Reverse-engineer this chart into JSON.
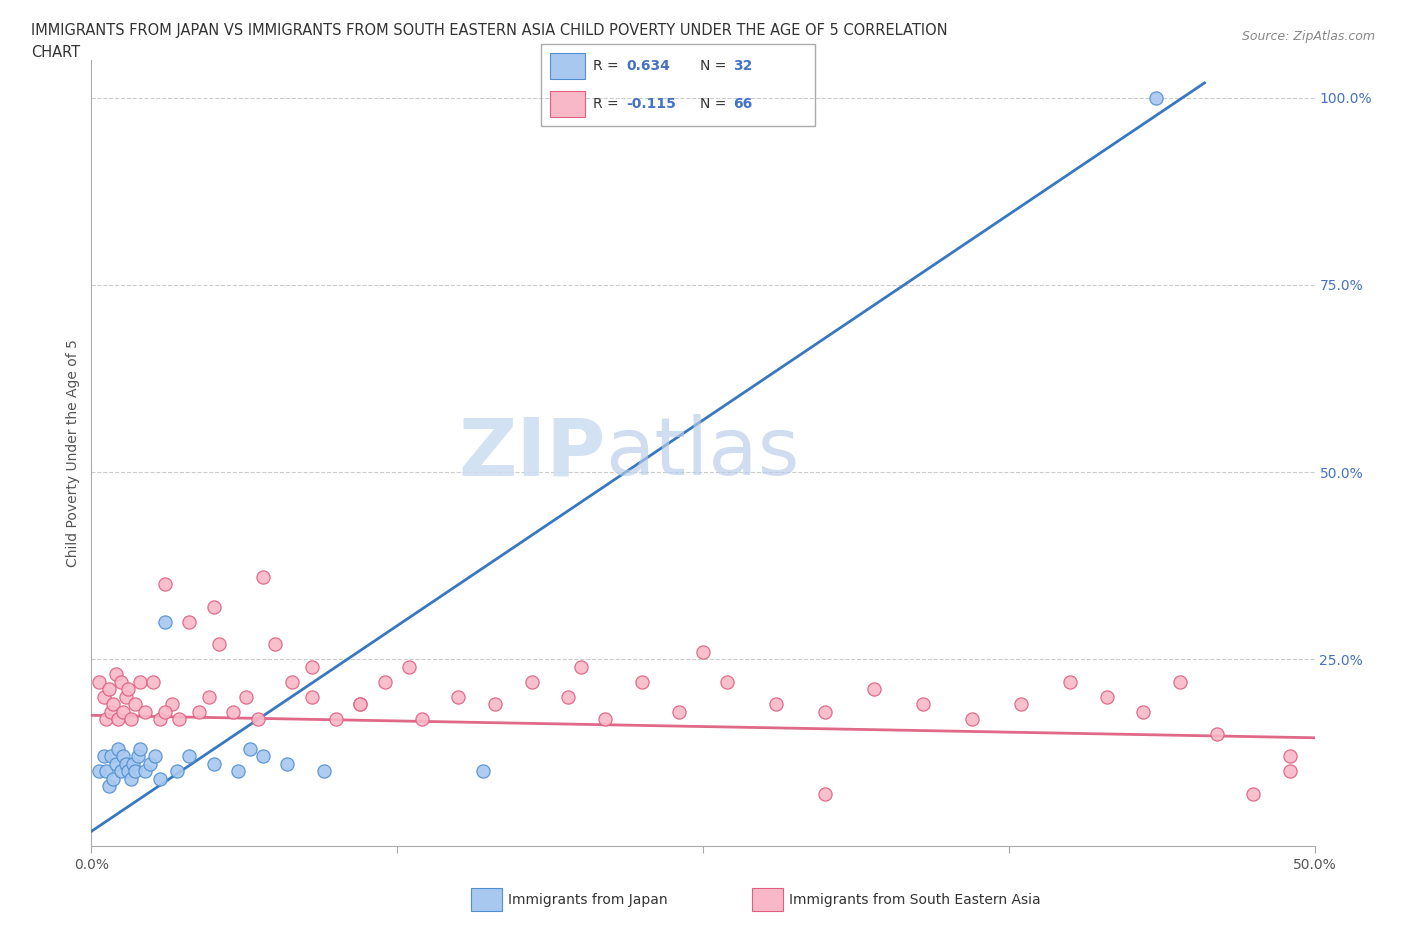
{
  "title_line1": "IMMIGRANTS FROM JAPAN VS IMMIGRANTS FROM SOUTH EASTERN ASIA CHILD POVERTY UNDER THE AGE OF 5 CORRELATION",
  "title_line2": "CHART",
  "source": "Source: ZipAtlas.com",
  "ylabel": "Child Poverty Under the Age of 5",
  "R_japan": 0.634,
  "N_japan": 32,
  "R_sea": -0.115,
  "N_sea": 66,
  "color_japan_fill": "#A8C8F0",
  "color_japan_edge": "#5090D0",
  "color_sea_fill": "#F8B8C8",
  "color_sea_edge": "#E06080",
  "color_japan_line": "#3878C0",
  "color_sea_line": "#E06888",
  "color_rn_text": "#4472C4",
  "xmin": 0.0,
  "xmax": 0.5,
  "ymin": 0.0,
  "ymax": 1.05,
  "japan_line_x0": 0.0,
  "japan_line_y0": 0.02,
  "japan_line_x1": 0.455,
  "japan_line_y1": 1.02,
  "sea_line_x0": 0.0,
  "sea_line_y0": 0.175,
  "sea_line_x1": 0.5,
  "sea_line_y1": 0.145,
  "japan_points_x": [
    0.003,
    0.005,
    0.006,
    0.007,
    0.008,
    0.009,
    0.01,
    0.011,
    0.012,
    0.013,
    0.014,
    0.015,
    0.016,
    0.017,
    0.018,
    0.019,
    0.02,
    0.022,
    0.024,
    0.026,
    0.028,
    0.03,
    0.035,
    0.04,
    0.05,
    0.06,
    0.065,
    0.07,
    0.08,
    0.095,
    0.16,
    0.435
  ],
  "japan_points_y": [
    0.1,
    0.12,
    0.1,
    0.08,
    0.12,
    0.09,
    0.11,
    0.13,
    0.1,
    0.12,
    0.11,
    0.1,
    0.09,
    0.11,
    0.1,
    0.12,
    0.13,
    0.1,
    0.11,
    0.12,
    0.09,
    0.3,
    0.1,
    0.12,
    0.11,
    0.1,
    0.13,
    0.12,
    0.11,
    0.1,
    0.1,
    1.0
  ],
  "sea_points_x": [
    0.003,
    0.005,
    0.006,
    0.007,
    0.008,
    0.009,
    0.01,
    0.011,
    0.012,
    0.013,
    0.014,
    0.015,
    0.016,
    0.018,
    0.02,
    0.022,
    0.025,
    0.028,
    0.03,
    0.033,
    0.036,
    0.04,
    0.044,
    0.048,
    0.052,
    0.058,
    0.063,
    0.068,
    0.075,
    0.082,
    0.09,
    0.1,
    0.11,
    0.12,
    0.135,
    0.15,
    0.165,
    0.18,
    0.195,
    0.21,
    0.225,
    0.24,
    0.26,
    0.28,
    0.3,
    0.32,
    0.34,
    0.36,
    0.38,
    0.4,
    0.415,
    0.43,
    0.445,
    0.46,
    0.475,
    0.49,
    0.03,
    0.05,
    0.07,
    0.09,
    0.11,
    0.13,
    0.2,
    0.25,
    0.3,
    0.49
  ],
  "sea_points_y": [
    0.22,
    0.2,
    0.17,
    0.21,
    0.18,
    0.19,
    0.23,
    0.17,
    0.22,
    0.18,
    0.2,
    0.21,
    0.17,
    0.19,
    0.22,
    0.18,
    0.22,
    0.17,
    0.35,
    0.19,
    0.17,
    0.3,
    0.18,
    0.2,
    0.27,
    0.18,
    0.2,
    0.17,
    0.27,
    0.22,
    0.24,
    0.17,
    0.19,
    0.22,
    0.17,
    0.2,
    0.19,
    0.22,
    0.2,
    0.17,
    0.22,
    0.18,
    0.22,
    0.19,
    0.18,
    0.21,
    0.19,
    0.17,
    0.19,
    0.22,
    0.2,
    0.18,
    0.22,
    0.15,
    0.07,
    0.12,
    0.18,
    0.32,
    0.36,
    0.2,
    0.19,
    0.24,
    0.24,
    0.26,
    0.07,
    0.1
  ]
}
